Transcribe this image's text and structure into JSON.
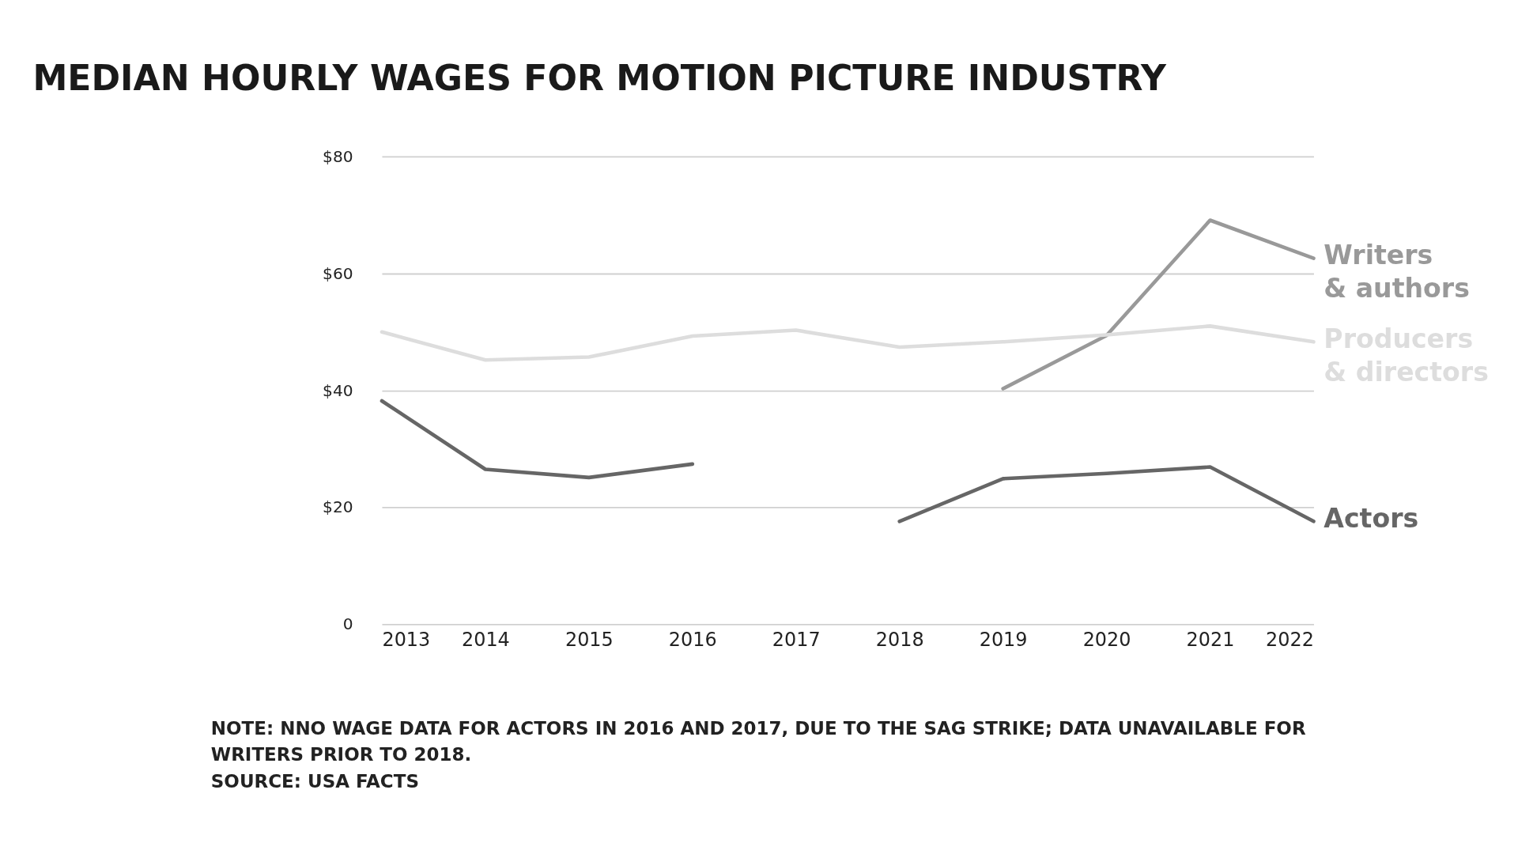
{
  "chart_data": {
    "type": "line",
    "title": "MEDIAN HOURLY WAGES FOR  MOTION PICTURE INDUSTRY",
    "x": [
      2013,
      2014,
      2015,
      2016,
      2017,
      2018,
      2019,
      2020,
      2021,
      2022
    ],
    "xlim": [
      2013,
      2022
    ],
    "xticks": [
      2013,
      2014,
      2015,
      2016,
      2017,
      2018,
      2019,
      2020,
      2021,
      2022
    ],
    "ylim": [
      0,
      80
    ],
    "yticks": [
      0,
      {
        "value": 20,
        "label": "$20"
      },
      {
        "value": 40,
        "label": "$40"
      },
      {
        "value": 60,
        "label": "$60"
      },
      {
        "value": 80,
        "label": "$80"
      }
    ],
    "grid": "y",
    "legend": false,
    "marker": "none",
    "line_style": "solid",
    "series": [
      {
        "name": "Writers\n& authors",
        "color": "#999999",
        "values": [
          null,
          null,
          null,
          null,
          null,
          null,
          40.3,
          49.4,
          69.1,
          62.6
        ]
      },
      {
        "name": "Producers\n& directors",
        "color": "#dddddd",
        "values": [
          50.0,
          45.2,
          45.7,
          49.3,
          50.3,
          47.4,
          48.3,
          49.5,
          51.0,
          48.3
        ]
      },
      {
        "name": "Actors",
        "color": "#666666",
        "values": [
          38.2,
          26.5,
          25.1,
          27.4,
          null,
          17.6,
          24.9,
          25.8,
          26.9,
          17.6
        ]
      }
    ],
    "annotations": [
      "NOTE: NNO WAGE DATA FOR ACTORS IN 2016 AND 2017, DUE TO THE SAG STRIKE; DATA UNAVAILABLE FOR WRITERS PRIOR TO 2018.",
      "SOURCE: USA FACTS"
    ]
  }
}
